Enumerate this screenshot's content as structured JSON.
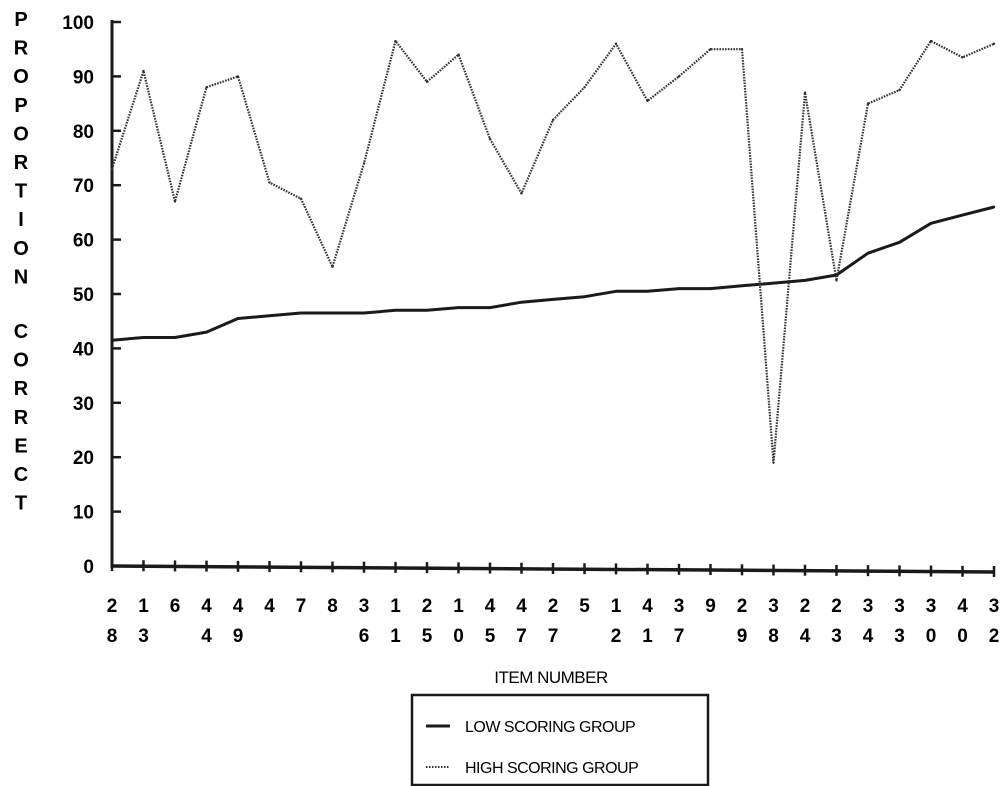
{
  "chart_data": {
    "type": "line",
    "title": "",
    "ylabel": "PROPORTION CORRECT",
    "xlabel": "ITEM NUMBER",
    "ylim": [
      0,
      100
    ],
    "yticks": [
      "0",
      "10",
      "20",
      "30",
      "40",
      "50",
      "60",
      "70",
      "80",
      "90",
      "100"
    ],
    "categories": [
      "28",
      "13",
      "6",
      "44",
      "49",
      "4",
      "7",
      "8",
      "36",
      "11",
      "25",
      "10",
      "45",
      "47",
      "27",
      "5",
      "12",
      "41",
      "37",
      "9",
      "29",
      "38",
      "24",
      "23",
      "34",
      "33",
      "30",
      "40",
      "32"
    ],
    "series": [
      {
        "name": "LOW SCORING GROUP",
        "style": "solid",
        "color": "#1a1a1a",
        "values": [
          41.5,
          42,
          42,
          43,
          45.5,
          46,
          46.5,
          46.5,
          46.5,
          47,
          47,
          47.5,
          47.5,
          48.5,
          49,
          49.5,
          50.5,
          50.5,
          51,
          51,
          51.5,
          52,
          52.5,
          53.5,
          57.5,
          59.5,
          63,
          64.5,
          66
        ]
      },
      {
        "name": "HIGH SCORING GROUP",
        "style": "dotted",
        "color": "#333333",
        "values": [
          73,
          91,
          67,
          88,
          90,
          70.5,
          67.5,
          55,
          74,
          96.5,
          89,
          94,
          78.5,
          68.5,
          82,
          88,
          96,
          85.5,
          90,
          95,
          95,
          19,
          87,
          52.5,
          85,
          87.5,
          96.5,
          93.5,
          96
        ]
      }
    ],
    "legend": {
      "placement": "bottom-center",
      "boxed": true
    },
    "grid": false
  }
}
